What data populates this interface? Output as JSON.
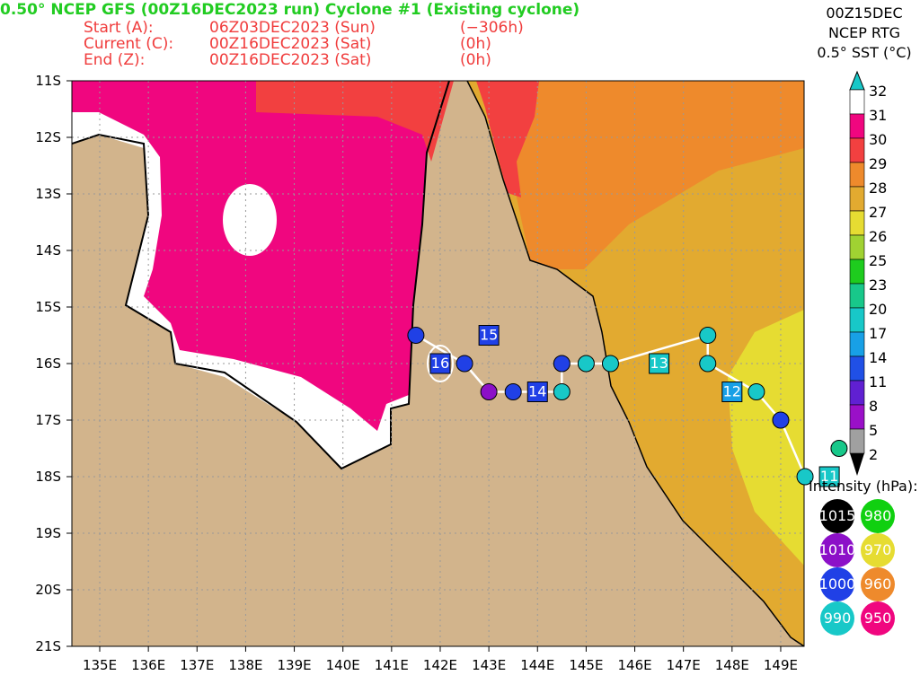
{
  "header": {
    "title": "0.50° NCEP GFS (00Z16DEC2023 run) Cyclone #1 (Existing cyclone)",
    "lines": [
      [
        "Start (A):",
        "06Z03DEC2023 (Sun)",
        "(−306h)"
      ],
      [
        "Current (C):",
        "00Z16DEC2023 (Sat)",
        "(0h)"
      ],
      [
        "End (Z):",
        "00Z16DEC2023 (Sat)",
        "(0h)"
      ]
    ]
  },
  "sst": {
    "date": "00Z15DEC",
    "source": "NCEP RTG",
    "label": "0.5° SST (°C)",
    "levels": [
      "32",
      "31",
      "30",
      "29",
      "28",
      "27",
      "26",
      "25",
      "23",
      "20",
      "17",
      "14",
      "11",
      "8",
      "5",
      "2"
    ],
    "colors": [
      "#ffffff",
      "#f0067f",
      "#f24040",
      "#ee8a2c",
      "#e2aa30",
      "#e6dc32",
      "#a0d232",
      "#1ecc1e",
      "#18c88a",
      "#18c8c8",
      "#18a0e6",
      "#2050e6",
      "#6020d2",
      "#9a10c8",
      "#a0a0a0"
    ]
  },
  "intensity": {
    "title": "Intensity (hPa):",
    "items": [
      {
        "label": "1015",
        "color": "#000000"
      },
      {
        "label": "980",
        "color": "#10d010"
      },
      {
        "label": "1010",
        "color": "#8c10c8"
      },
      {
        "label": "970",
        "color": "#e6dc32"
      },
      {
        "label": "1000",
        "color": "#2040e6"
      },
      {
        "label": "960",
        "color": "#ee8a2c"
      },
      {
        "label": "990",
        "color": "#18c8c8"
      },
      {
        "label": "950",
        "color": "#f0067f"
      }
    ]
  },
  "map": {
    "lat_labels": [
      "11S",
      "12S",
      "13S",
      "14S",
      "15S",
      "16S",
      "17S",
      "18S",
      "19S",
      "20S",
      "21S"
    ],
    "lon_labels": [
      "135E",
      "136E",
      "137E",
      "138E",
      "139E",
      "140E",
      "141E",
      "142E",
      "143E",
      "144E",
      "145E",
      "146E",
      "147E",
      "148E",
      "149E"
    ],
    "track": [
      {
        "lon": 150.2,
        "lat": 17.5,
        "color": "#18c88a"
      },
      {
        "lon": 149.5,
        "lat": 18,
        "color": "#18c8c8"
      },
      {
        "lon": 149,
        "lat": 17,
        "color": "#2040e6"
      },
      {
        "lon": 148.5,
        "lat": 16.5,
        "color": "#18c8c8"
      },
      {
        "lon": 147.5,
        "lat": 16,
        "color": "#18c8c8"
      },
      {
        "lon": 147.5,
        "lat": 15.5,
        "color": "#18c8c8"
      },
      {
        "lon": 145.5,
        "lat": 16,
        "color": "#18c8c8"
      },
      {
        "lon": 145,
        "lat": 16,
        "color": "#18c8c8"
      },
      {
        "lon": 144.5,
        "lat": 16,
        "color": "#2040e6"
      },
      {
        "lon": 144.5,
        "lat": 16.5,
        "color": "#18c8c8"
      },
      {
        "lon": 143.5,
        "lat": 16.5,
        "color": "#2040e6"
      },
      {
        "lon": 143,
        "lat": 16.5,
        "color": "#8c10c8"
      },
      {
        "lon": 142.5,
        "lat": 16,
        "color": "#2040e6"
      },
      {
        "lon": 141.5,
        "lat": 15.5,
        "color": "#2040e6"
      }
    ],
    "days": [
      {
        "lon": 150,
        "lat": 18,
        "label": "11",
        "color": "#18c8c8"
      },
      {
        "lon": 148,
        "lat": 16.5,
        "label": "12",
        "color": "#18a0e6"
      },
      {
        "lon": 146.5,
        "lat": 16,
        "label": "13",
        "color": "#18c8c8"
      },
      {
        "lon": 144,
        "lat": 16.5,
        "label": "14",
        "color": "#2040e6"
      },
      {
        "lon": 143,
        "lat": 15.5,
        "label": "15",
        "color": "#2040e6"
      },
      {
        "lon": 142,
        "lat": 16,
        "label": "16",
        "color": "#2040e6"
      }
    ]
  }
}
